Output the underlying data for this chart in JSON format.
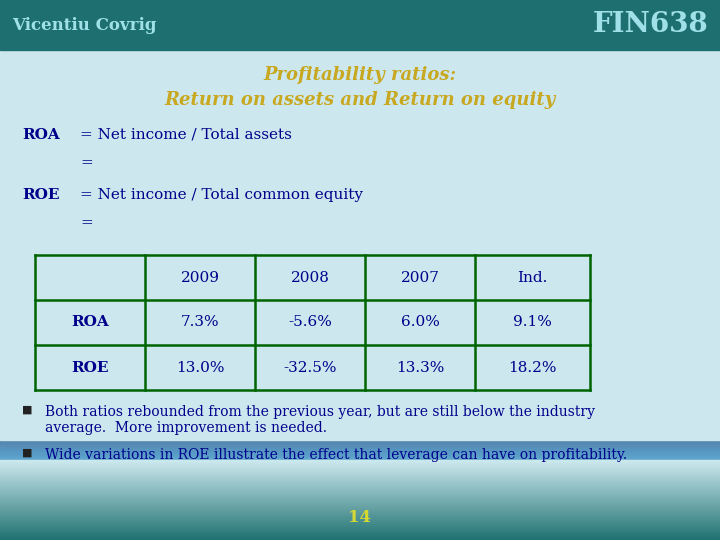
{
  "bg_color": "#cce8ee",
  "header_bg": "#1e7070",
  "header_text_left": "Vicentiu Covrig",
  "header_text_right": "FIN638",
  "header_text_color": "#a0e0e8",
  "title_line1": "Profitability ratios:",
  "title_line2": "Return on assets and Return on equity",
  "title_color": "#c8a820",
  "roa_label": "ROA",
  "roa_def": "= Net income / Total assets",
  "roa_eq": "=",
  "roe_label": "ROE",
  "roe_def": "= Net income / Total common equity",
  "roe_eq": "=",
  "table_headers": [
    "",
    "2009",
    "2008",
    "2007",
    "Ind."
  ],
  "table_row1": [
    "ROA",
    "7.3%",
    "-5.6%",
    "6.0%",
    "9.1%"
  ],
  "table_row2": [
    "ROE",
    "13.0%",
    "-32.5%",
    "13.3%",
    "18.2%"
  ],
  "table_border_color": "#006400",
  "table_text_color": "#00008B",
  "body_text_color": "#00008B",
  "bullet1": "Both ratios rebounded from the previous year, but are still below the industry\naverage.  More improvement is needed.",
  "bullet2": "Wide variations in ROE illustrate the effect that leverage can have on profitability.",
  "footer_text": "14",
  "footer_color": "#d4d832"
}
